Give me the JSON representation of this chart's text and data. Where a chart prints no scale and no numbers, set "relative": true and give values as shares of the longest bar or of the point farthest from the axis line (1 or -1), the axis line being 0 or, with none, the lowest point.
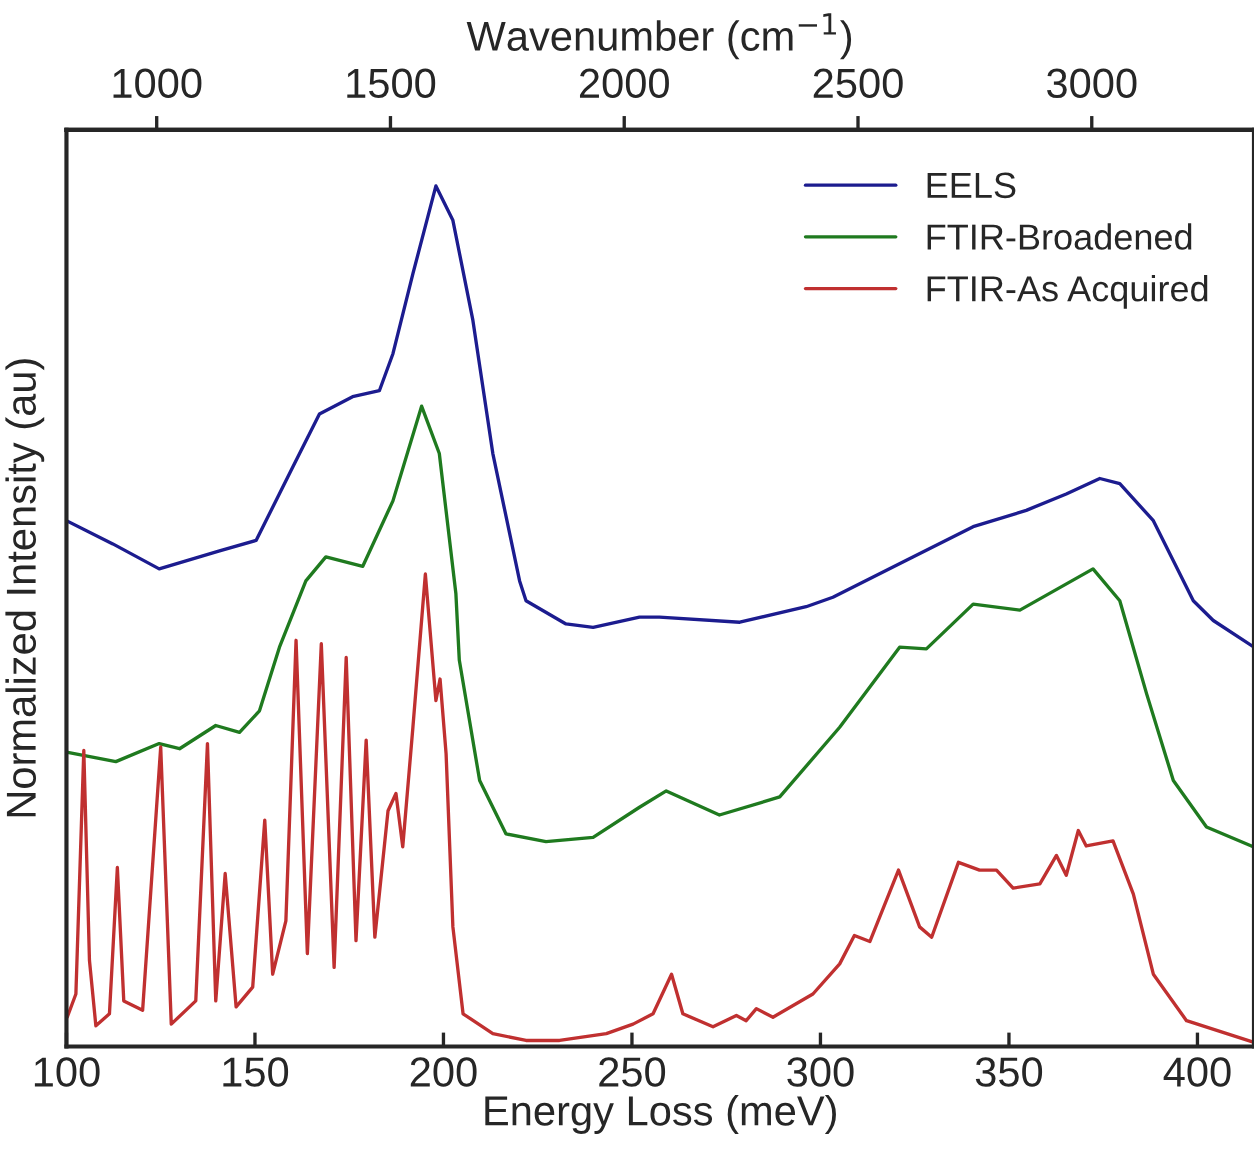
{
  "chart_data": {
    "type": "line",
    "relative": true,
    "xlabel": "Energy Loss (meV)",
    "ylabel": "Normalized Intensity (au)",
    "x2label": "Wavenumber (cm$^{−1}$)",
    "xlim": [
      100,
      415
    ],
    "xticks": [
      100,
      150,
      200,
      250,
      300,
      350,
      400
    ],
    "x2lim": [
      807,
      3347
    ],
    "x2ticks": [
      1000,
      1500,
      2000,
      2500,
      3000
    ],
    "tick_labels": "x",
    "legend": "top right",
    "grid": false,
    "series": [
      {
        "name": "EELS",
        "color": "#1c1c8f",
        "x": [
          100,
          112.3,
          124.6,
          140.6,
          150.3,
          160,
          167.1,
          175.9,
          183,
          186.6,
          191.9,
          198,
          202.5,
          207.8,
          213.1,
          220.2,
          221.9,
          232.5,
          239.7,
          252,
          257.3,
          278.6,
          296.2,
          303.3,
          322.8,
          340.5,
          354.6,
          365.2,
          374.1,
          379.4,
          388.3,
          398.9,
          404.2,
          415
        ],
        "values": [
          0.611,
          0.584,
          0.555,
          0.576,
          0.588,
          0.673,
          0.735,
          0.755,
          0.762,
          0.805,
          0.898,
          1.0,
          0.96,
          0.844,
          0.689,
          0.541,
          0.518,
          0.491,
          0.487,
          0.499,
          0.499,
          0.493,
          0.511,
          0.522,
          0.565,
          0.604,
          0.623,
          0.642,
          0.66,
          0.654,
          0.611,
          0.518,
          0.495,
          0.464
        ]
      },
      {
        "name": "FTIR-Broadened",
        "color": "#1f7a1f",
        "x": [
          100,
          113.1,
          124.6,
          130,
          139.6,
          145.9,
          151.2,
          156.5,
          163.5,
          168.8,
          178.6,
          186.6,
          194.2,
          198.9,
          203.3,
          204.2,
          209.6,
          216.6,
          227.2,
          239.7,
          252,
          259.1,
          273.2,
          289.2,
          305.1,
          321,
          328.1,
          340.5,
          352.9,
          372.3,
          379.4,
          386.5,
          393.6,
          402.4,
          414.8
        ],
        "values": [
          0.342,
          0.331,
          0.352,
          0.346,
          0.373,
          0.365,
          0.39,
          0.464,
          0.541,
          0.569,
          0.558,
          0.634,
          0.744,
          0.689,
          0.526,
          0.449,
          0.309,
          0.247,
          0.238,
          0.243,
          0.278,
          0.297,
          0.269,
          0.29,
          0.371,
          0.464,
          0.462,
          0.514,
          0.507,
          0.555,
          0.518,
          0.41,
          0.309,
          0.255,
          0.232
        ]
      },
      {
        "name": "FTIR-As Acquired",
        "color": "#c03030",
        "x": [
          100.2,
          102.5,
          104.6,
          106.1,
          107.8,
          111.4,
          113.5,
          115.2,
          120.2,
          125,
          127.8,
          134.3,
          137.4,
          139.6,
          142.1,
          145,
          149.4,
          152.6,
          154.7,
          158.2,
          160.9,
          163.9,
          167.6,
          171,
          174.2,
          176.8,
          179.5,
          181.8,
          185.3,
          187.4,
          189.2,
          191.9,
          195.2,
          198,
          199.1,
          200.7,
          202.5,
          205.2,
          213.1,
          221.9,
          230.8,
          243.2,
          250.3,
          255.6,
          260.5,
          263.5,
          271.5,
          277.7,
          280.3,
          283,
          287.4,
          298,
          305.1,
          309,
          313.1,
          320.7,
          326.3,
          329.5,
          336.6,
          342.2,
          346.7,
          351.1,
          358.2,
          362.6,
          365.2,
          368.4,
          370.5,
          377.6,
          383,
          388.3,
          397.1,
          414.8
        ],
        "values": [
          0.034,
          0.061,
          0.344,
          0.1,
          0.024,
          0.038,
          0.208,
          0.053,
          0.042,
          0.348,
          0.026,
          0.053,
          0.352,
          0.053,
          0.201,
          0.046,
          0.069,
          0.263,
          0.084,
          0.146,
          0.472,
          0.108,
          0.468,
          0.092,
          0.452,
          0.123,
          0.356,
          0.127,
          0.274,
          0.294,
          0.232,
          0.371,
          0.549,
          0.402,
          0.427,
          0.34,
          0.139,
          0.038,
          0.015,
          0.007,
          0.007,
          0.015,
          0.026,
          0.038,
          0.084,
          0.038,
          0.023,
          0.036,
          0.03,
          0.044,
          0.034,
          0.061,
          0.096,
          0.129,
          0.122,
          0.205,
          0.139,
          0.127,
          0.214,
          0.205,
          0.205,
          0.184,
          0.189,
          0.222,
          0.199,
          0.251,
          0.233,
          0.239,
          0.177,
          0.084,
          0.03,
          0.005
        ]
      }
    ]
  }
}
